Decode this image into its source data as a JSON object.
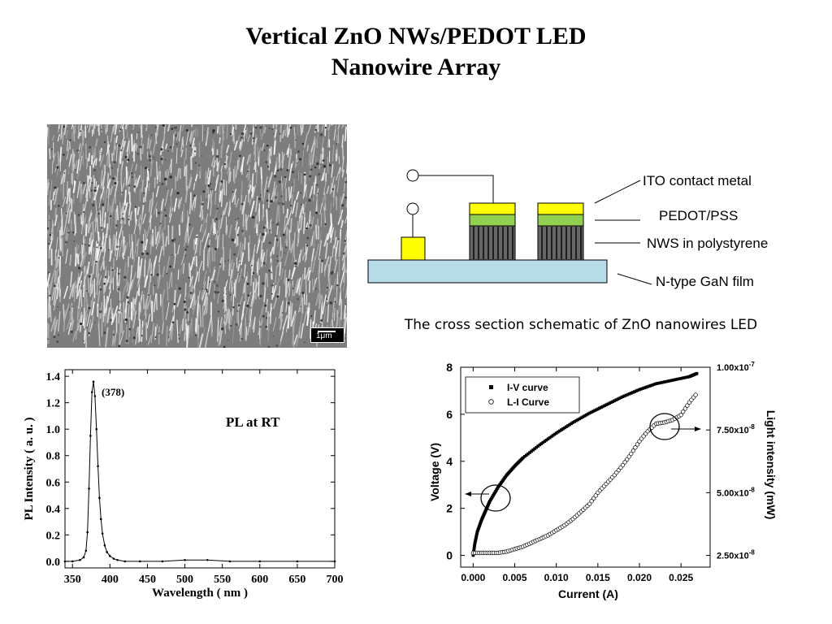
{
  "slide": {
    "title_line1": "Vertical ZnO NWs/PEDOT LED",
    "title_line2": "Nanowire Array"
  },
  "sem": {
    "scale_label": "1μm"
  },
  "schematic": {
    "labels": [
      "ITO contact metal",
      "PEDOT/PSS",
      "NWS in polystyrene",
      "N-type GaN film"
    ],
    "caption": "The cross section schematic of ZnO nanowires LED",
    "colors": {
      "ito": "#ffff00",
      "pedot": "#92d050",
      "nws": "#666666",
      "gan": "#b7dde8",
      "contact": "#ffff00"
    }
  },
  "chart_data": [
    {
      "type": "line",
      "xlabel": "Wavelength ( nm )",
      "ylabel": "PL Intensity ( a. u. )",
      "annotation": "PL at RT",
      "peak_label": "(378)",
      "xlim": [
        340,
        700
      ],
      "ylim": [
        -0.05,
        1.45
      ],
      "xticks": [
        "350",
        "400",
        "450",
        "500",
        "550",
        "600",
        "650",
        "700"
      ],
      "yticks": [
        "0.0",
        "0.2",
        "0.4",
        "0.6",
        "0.8",
        "1.0",
        "1.2",
        "1.4"
      ],
      "x": [
        340,
        350,
        360,
        365,
        368,
        370,
        372,
        374,
        376,
        378,
        380,
        382,
        384,
        386,
        388,
        390,
        393,
        396,
        400,
        405,
        410,
        420,
        440,
        470,
        500,
        530,
        560,
        600,
        650,
        700
      ],
      "values": [
        0.0,
        0.0,
        0.01,
        0.03,
        0.08,
        0.22,
        0.55,
        0.95,
        1.28,
        1.36,
        1.25,
        1.0,
        0.72,
        0.48,
        0.32,
        0.21,
        0.12,
        0.07,
        0.04,
        0.02,
        0.01,
        0.0,
        0.0,
        0.0,
        0.01,
        0.01,
        0.0,
        0.0,
        0.0,
        0.0
      ]
    },
    {
      "type": "scatter",
      "xlabel": "Current (A)",
      "ylabel": "Voltage (V)",
      "y2label": "Light intensity (mW)",
      "xlim": [
        -0.0015,
        0.0285
      ],
      "ylim": [
        -0.5,
        8
      ],
      "y2lim": [
        2e-08,
        1e-07
      ],
      "xticks": [
        "0.000",
        "0.005",
        "0.010",
        "0.015",
        "0.020",
        "0.025"
      ],
      "yticks": [
        "0",
        "2",
        "4",
        "6",
        "8"
      ],
      "y2ticks": [
        {
          "mant": "1.00x10",
          "exp": "-7"
        },
        {
          "mant": "7.50x10",
          "exp": "-8"
        },
        {
          "mant": "5.00x10",
          "exp": "-8"
        },
        {
          "mant": "2.50x10",
          "exp": "-8"
        }
      ],
      "series": [
        {
          "name": "I-V curve",
          "marker": "filled-square",
          "x": [
            0.0,
            0.0002,
            0.0005,
            0.001,
            0.0015,
            0.002,
            0.003,
            0.004,
            0.005,
            0.006,
            0.008,
            0.01,
            0.012,
            0.014,
            0.016,
            0.018,
            0.02,
            0.022,
            0.024,
            0.026,
            0.027
          ],
          "values": [
            0.0,
            0.5,
            1.0,
            1.5,
            1.9,
            2.3,
            2.9,
            3.4,
            3.8,
            4.15,
            4.7,
            5.2,
            5.65,
            6.05,
            6.4,
            6.75,
            7.05,
            7.3,
            7.45,
            7.6,
            7.75
          ]
        },
        {
          "name": "L-I Curve",
          "marker": "open-circle",
          "x": [
            0.0,
            0.001,
            0.002,
            0.003,
            0.004,
            0.005,
            0.006,
            0.007,
            0.008,
            0.009,
            0.01,
            0.011,
            0.012,
            0.013,
            0.014,
            0.015,
            0.016,
            0.017,
            0.018,
            0.019,
            0.02,
            0.021,
            0.022,
            0.023,
            0.024,
            0.025,
            0.026,
            0.027
          ],
          "values": [
            2.6e-08,
            2.6e-08,
            2.6e-08,
            2.6e-08,
            2.65e-08,
            2.75e-08,
            2.85e-08,
            3e-08,
            3.15e-08,
            3.3e-08,
            3.5e-08,
            3.7e-08,
            3.95e-08,
            4.25e-08,
            4.55e-08,
            5e-08,
            5.35e-08,
            5.7e-08,
            6.1e-08,
            6.55e-08,
            7.05e-08,
            7.45e-08,
            7.75e-08,
            7.8e-08,
            7.9e-08,
            8.1e-08,
            8.6e-08,
            9e-08
          ]
        }
      ]
    }
  ]
}
